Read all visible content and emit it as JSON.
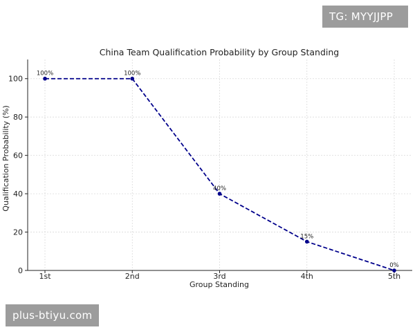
{
  "watermarks": {
    "top": "TG: MYYJJPP",
    "bottom": "plus-btiyu.com"
  },
  "chart_data": {
    "type": "line",
    "title": "China Team Qualification Probability by Group Standing",
    "xlabel": "Group Standing",
    "ylabel": "Qualification Probability (%)",
    "categories": [
      "1st",
      "2nd",
      "3rd",
      "4th",
      "5th"
    ],
    "series": [
      {
        "values": [
          100,
          100,
          40,
          15,
          0
        ],
        "labels": [
          "100%",
          "100%",
          "40%",
          "15%",
          "0%"
        ],
        "color": "#00008b"
      }
    ],
    "ylim": [
      0,
      110
    ],
    "yticks": [
      0,
      20,
      40,
      60,
      80,
      100
    ],
    "grid": true,
    "line_style": "dashed",
    "marker": "circle"
  }
}
